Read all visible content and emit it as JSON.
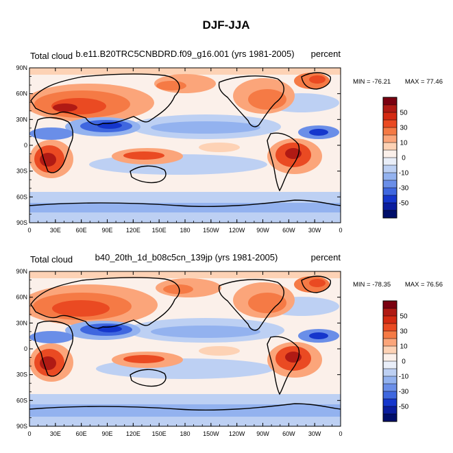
{
  "figure_title": "DJF-JJA",
  "chart_data": [
    {
      "type": "heatmap",
      "title_left": "Total cloud",
      "title_center": "b.e11.B20TRC5CNBDRD.f09_g16.001 (yrs 1981-2005)",
      "title_right": "percent",
      "variable": "Total cloud",
      "units": "percent",
      "min_label": "MIN = -76.21",
      "max_label": "MAX =  77.46",
      "min": -76.21,
      "max": 77.46,
      "x_ticks": [
        "0",
        "30E",
        "60E",
        "90E",
        "120E",
        "150E",
        "180",
        "150W",
        "120W",
        "90W",
        "60W",
        "30W",
        "0"
      ],
      "y_ticks": [
        "90N",
        "60N",
        "30N",
        "0",
        "30S",
        "60S",
        "90S"
      ],
      "xlim": [
        0,
        360
      ],
      "ylim": [
        -90,
        90
      ],
      "colorbar_labels": [
        "50",
        "30",
        "10",
        "0",
        "-10",
        "-30",
        "-50"
      ],
      "colorbar_levels": [
        -60,
        -50,
        -40,
        -30,
        -20,
        -10,
        -5,
        0,
        5,
        10,
        20,
        30,
        40,
        50,
        60
      ]
    },
    {
      "type": "heatmap",
      "title_left": "Total cloud",
      "title_center": "b40_20th_1d_b08c5cn_139jp (yrs 1981-2005)",
      "title_right": "percent",
      "variable": "Total cloud",
      "units": "percent",
      "min_label": "MIN = -78.35",
      "max_label": "MAX =  76.56",
      "min": -78.35,
      "max": 76.56,
      "x_ticks": [
        "0",
        "30E",
        "60E",
        "90E",
        "120E",
        "150E",
        "180",
        "150W",
        "120W",
        "90W",
        "60W",
        "30W",
        "0"
      ],
      "y_ticks": [
        "90N",
        "60N",
        "30N",
        "0",
        "30S",
        "60S",
        "90S"
      ],
      "xlim": [
        0,
        360
      ],
      "ylim": [
        -90,
        90
      ],
      "colorbar_labels": [
        "50",
        "30",
        "10",
        "0",
        "-10",
        "-30",
        "-50"
      ],
      "colorbar_levels": [
        -60,
        -50,
        -40,
        -30,
        -20,
        -10,
        -5,
        0,
        5,
        10,
        20,
        30,
        40,
        50,
        60
      ]
    }
  ],
  "colors": {
    "colorbar_top_to_bottom": [
      "#7a0010",
      "#b01a14",
      "#d42a12",
      "#ea4a22",
      "#f57a45",
      "#fba57a",
      "#fdd2b5",
      "#fbf0ea",
      "#e9eef8",
      "#bdd0f3",
      "#93b2ef",
      "#6a8ee8",
      "#3f67df",
      "#1536cc",
      "#0a1d9e",
      "#000e6a"
    ]
  }
}
